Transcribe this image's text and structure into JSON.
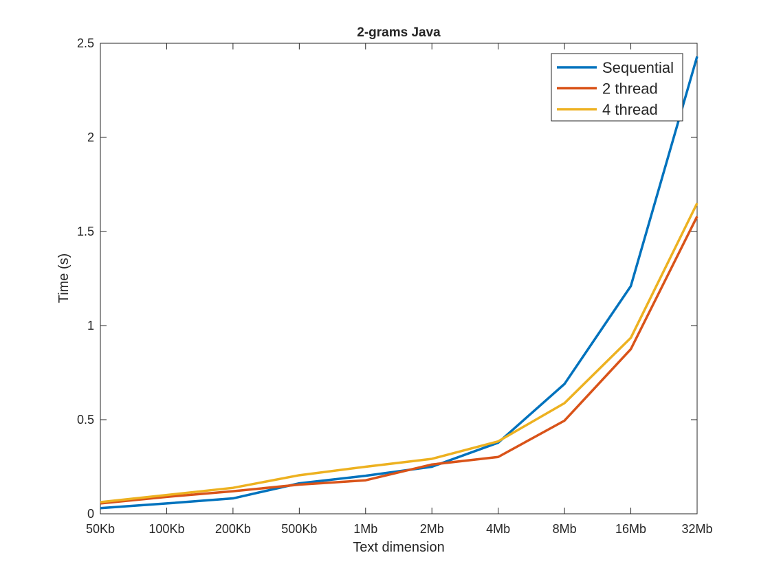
{
  "chart_data": {
    "type": "line",
    "title": "2-grams Java",
    "xlabel": "Text dimension",
    "ylabel": "Time (s)",
    "categories": [
      "50Kb",
      "100Kb",
      "200Kb",
      "500Kb",
      "1Mb",
      "2Mb",
      "4Mb",
      "8Mb",
      "16Mb",
      "32Mb"
    ],
    "ylim": [
      0,
      2.5
    ],
    "yticks": [
      0,
      0.5,
      1,
      1.5,
      2,
      2.5
    ],
    "ytick_labels": [
      "0",
      "0.5",
      "1",
      "1.5",
      "2",
      "2.5"
    ],
    "grid": false,
    "legend_position": "top-right",
    "series": [
      {
        "name": "Sequential",
        "color": "#0072BD",
        "values": [
          0.03,
          0.055,
          0.082,
          0.162,
          0.202,
          0.25,
          0.378,
          0.69,
          1.21,
          2.43
        ]
      },
      {
        "name": "2 thread",
        "color": "#D95319",
        "values": [
          0.055,
          0.09,
          0.12,
          0.155,
          0.178,
          0.262,
          0.302,
          0.495,
          0.875,
          1.58
        ]
      },
      {
        "name": "4 thread",
        "color": "#EDB120",
        "values": [
          0.062,
          0.1,
          0.138,
          0.205,
          0.25,
          0.292,
          0.385,
          0.588,
          0.935,
          1.65
        ]
      }
    ]
  }
}
